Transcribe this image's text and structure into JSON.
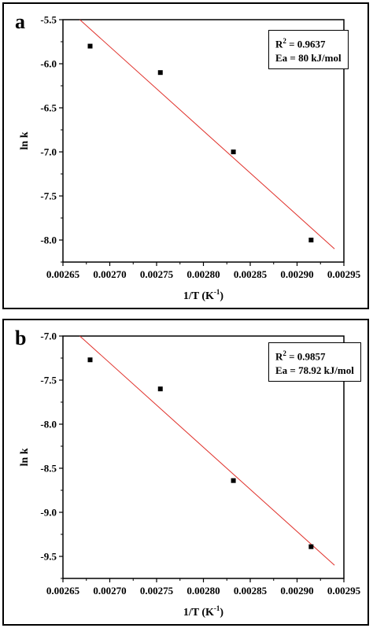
{
  "chart_data": [
    {
      "type": "scatter",
      "panel_label": "a",
      "xlabel": "1/T (K",
      "xlabel_sup": "-1",
      "xlabel_end": ")",
      "ylabel": "ln k",
      "xlim": [
        0.00265,
        0.00295
      ],
      "ylim": [
        -8.25,
        -5.5
      ],
      "xticks": [
        0.00265,
        0.0027,
        0.00275,
        0.0028,
        0.00285,
        0.0029,
        0.00295
      ],
      "xtick_labels": [
        "0.00265",
        "0.00270",
        "0.00275",
        "0.00280",
        "0.00285",
        "0.00290",
        "0.00295"
      ],
      "yticks": [
        -5.5,
        -6.0,
        -6.5,
        -7.0,
        -7.5,
        -8.0
      ],
      "ytick_labels": [
        "-5.5",
        "-6.0",
        "-6.5",
        "-7.0",
        "-7.5",
        "-8.0"
      ],
      "points": [
        {
          "x": 0.002679,
          "y": -5.8
        },
        {
          "x": 0.002754,
          "y": -6.1
        },
        {
          "x": 0.002832,
          "y": -7.0
        },
        {
          "x": 0.002915,
          "y": -8.0
        }
      ],
      "fit_line": {
        "x": [
          0.002668,
          0.00294
        ],
        "y": [
          -5.5,
          -8.1
        ],
        "color": "#e0302a"
      },
      "annotation": {
        "r2_prefix": "R",
        "r2_sup": "2",
        "r2_value": " = 0.9637",
        "ea": "Ea = 80 kJ/mol"
      }
    },
    {
      "type": "scatter",
      "panel_label": "b",
      "xlabel": "1/T (K",
      "xlabel_sup": "-1",
      "xlabel_end": ")",
      "ylabel": "ln k",
      "xlim": [
        0.00265,
        0.00295
      ],
      "ylim": [
        -9.75,
        -7.0
      ],
      "xticks": [
        0.00265,
        0.0027,
        0.00275,
        0.0028,
        0.00285,
        0.0029,
        0.00295
      ],
      "xtick_labels": [
        "0.00265",
        "0.00270",
        "0.00275",
        "0.00280",
        "0.00285",
        "0.00290",
        "0.00295"
      ],
      "yticks": [
        -7.0,
        -7.5,
        -8.0,
        -8.5,
        -9.0,
        -9.5
      ],
      "ytick_labels": [
        "-7.0",
        "-7.5",
        "-8.0",
        "-8.5",
        "-9.0",
        "-9.5"
      ],
      "points": [
        {
          "x": 0.002679,
          "y": -7.27
        },
        {
          "x": 0.002754,
          "y": -7.6
        },
        {
          "x": 0.002832,
          "y": -8.64
        },
        {
          "x": 0.002915,
          "y": -9.39
        }
      ],
      "fit_line": {
        "x": [
          0.002668,
          0.00294
        ],
        "y": [
          -7.0,
          -9.6
        ],
        "color": "#e0302a"
      },
      "annotation": {
        "r2_prefix": "R",
        "r2_sup": "2",
        "r2_value": " = 0.9857",
        "ea": "Ea = 78.92 kJ/mol"
      }
    }
  ]
}
